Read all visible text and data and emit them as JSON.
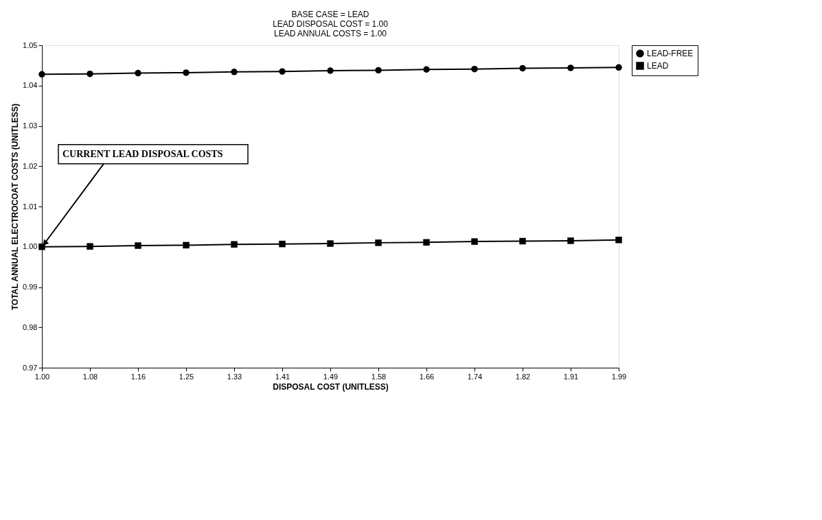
{
  "chart_data": {
    "type": "line",
    "title": [
      "BASE CASE = LEAD",
      "LEAD DISPOSAL COST = 1.00",
      "LEAD ANNUAL COSTS = 1.00"
    ],
    "xlabel": "DISPOSAL COST (UNITLESS)",
    "ylabel": "TOTAL ANNUAL ELECTROCOAT COSTS (UNITLESS)",
    "categories": [
      "1.00",
      "1.08",
      "1.16",
      "1.25",
      "1.33",
      "1.41",
      "1.49",
      "1.58",
      "1.66",
      "1.74",
      "1.82",
      "1.91",
      "1.99"
    ],
    "series": [
      {
        "name": "LEAD-FREE",
        "color": "#000000",
        "marker": "circle",
        "values": [
          1.0428,
          1.0429,
          1.0431,
          1.0432,
          1.0434,
          1.0435,
          1.0437,
          1.0438,
          1.044,
          1.0441,
          1.0443,
          1.0444,
          1.0445
        ]
      },
      {
        "name": "LEAD",
        "color": "#000000",
        "marker": "square",
        "values": [
          1.0,
          1.0001,
          1.0003,
          1.0004,
          1.0006,
          1.0007,
          1.0008,
          1.001,
          1.0011,
          1.0013,
          1.0014,
          1.0015,
          1.0017
        ]
      }
    ],
    "ylim": [
      0.97,
      1.05
    ],
    "yticks": [
      0.97,
      0.98,
      0.99,
      {
        "value": 1.0,
        "label": "1.00"
      },
      1.01,
      1.02,
      1.03,
      1.04,
      1.05
    ],
    "annotations": [
      {
        "text": "CURRENT LEAD DISPOSAL COSTS",
        "x": "1.00",
        "y": 1.0
      }
    ],
    "grid": false,
    "legend": "right",
    "line_style": "solid"
  }
}
